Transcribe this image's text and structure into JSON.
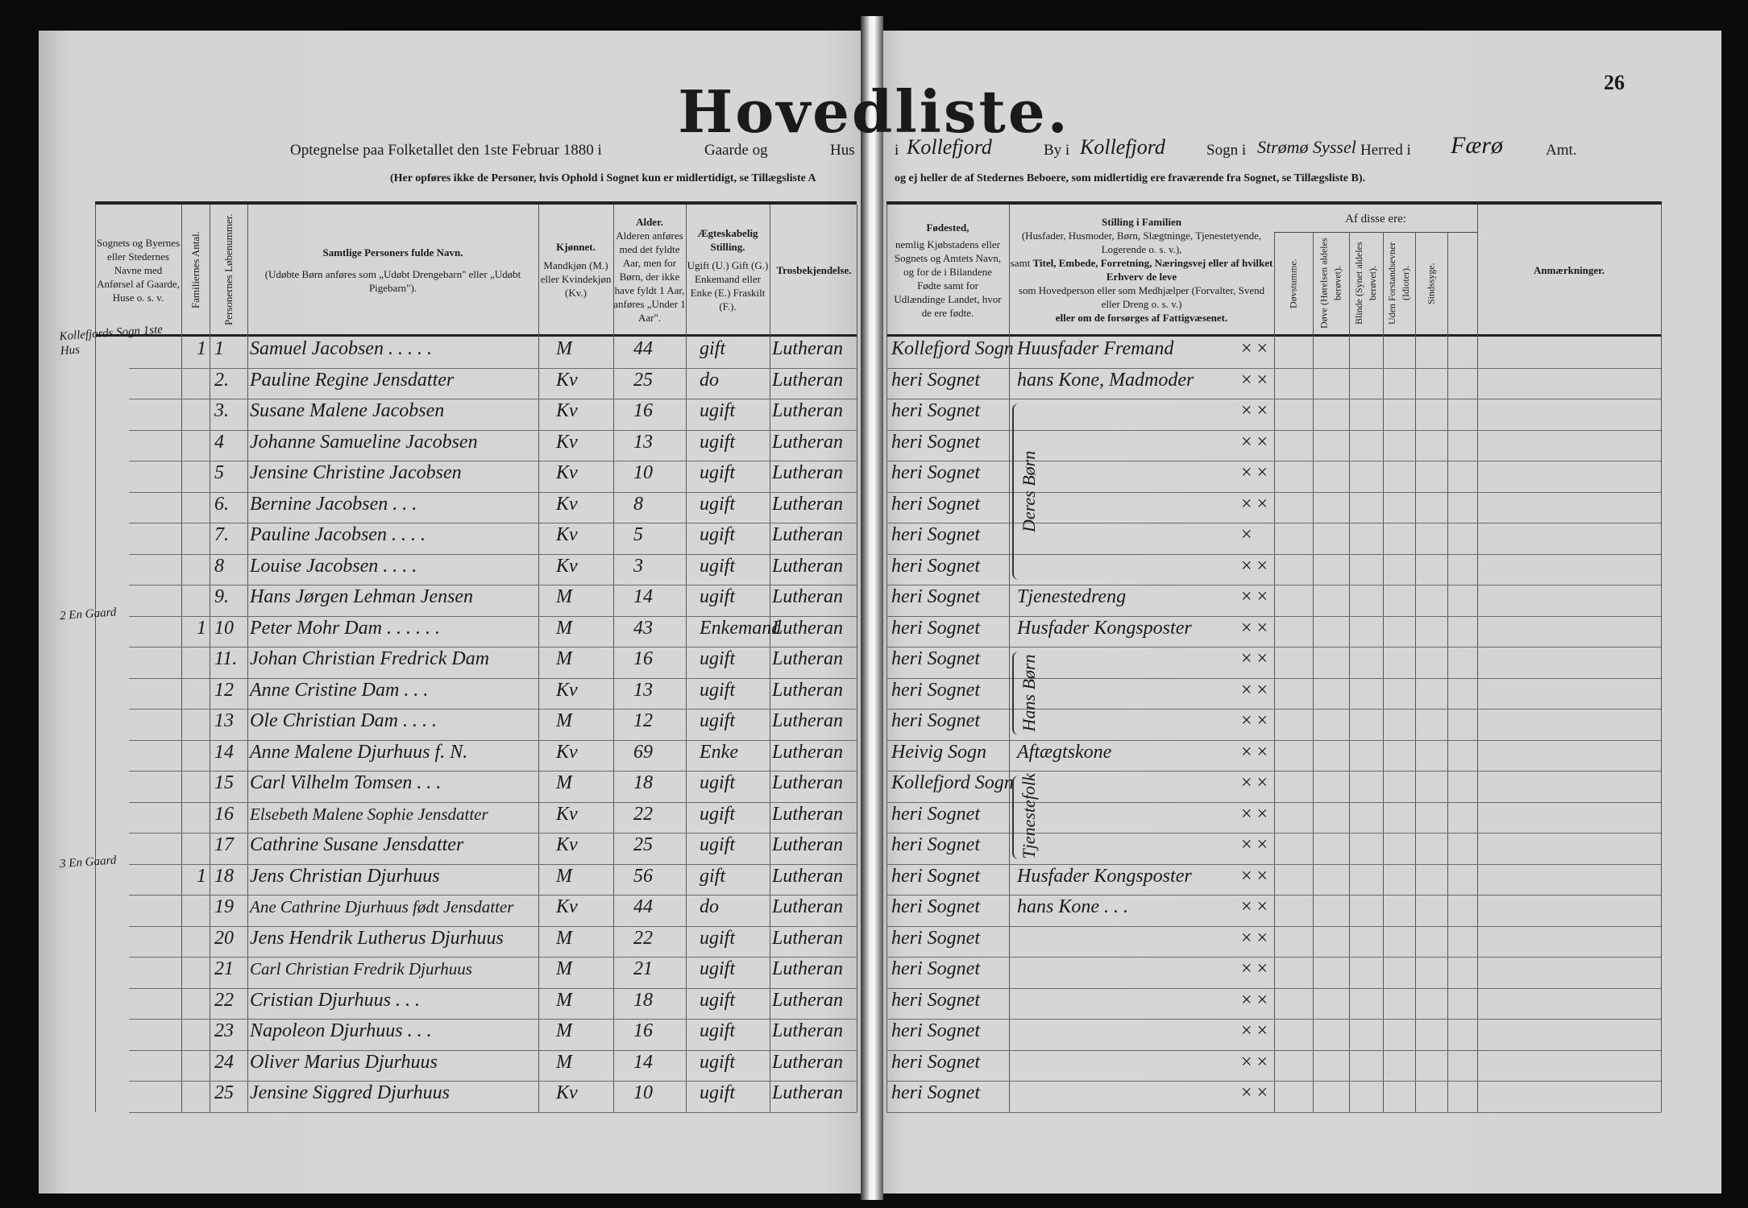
{
  "title": "Hovedliste.",
  "page_number": "26",
  "subtitle": {
    "part1": "Optegnelse paa Folketallet den 1ste Februar 1880 i",
    "gaarde": "Gaarde og",
    "hus": "Hus",
    "i1": "i",
    "place_by": "Kollefjord",
    "by": "By i",
    "place_sogn": "Kollefjord",
    "sogn": "Sogn i",
    "place_herred": "Strømø Syssel",
    "herred": "Herred i",
    "place_amt": "Færø",
    "amt": "Amt."
  },
  "note": {
    "left": "(Her opføres ikke de Personer, hvis Ophold i Sognet kun er midlertidigt, se Tillægsliste A",
    "right": "og ej heller de af Stedernes Beboere, som midlertidig ere fraværende fra Sognet, se Tillægsliste B)."
  },
  "headers": {
    "place": "Sognets og Byernes eller Stedernes Navne med Anførsel af Gaarde, Huse o. s. v.",
    "families": "Familiernes Antal.",
    "person_no": "Personernes Løbenummer.",
    "name_title": "Samtlige Personers fulde Navn.",
    "name_note": "(Udøbte Børn anføres som „Udøbt Drengebarn\" eller „Udøbt Pigebarn\").",
    "sex_title": "Kjønnet.",
    "sex_note": "Mandkjøn (M.) eller Kvindekjøn (Kv.)",
    "age_title": "Alder.",
    "age_note": "Alderen anføres med det fyldte Aar, men for Børn, der ikke have fyldt 1 Aar, anføres „Under 1 Aar\".",
    "marital_title": "Ægteskabelig Stilling.",
    "marital_note": "Ugift (U.) Gift (G.) Enkemand eller Enke (E.) Fraskilt (F.).",
    "religion": "Trosbekjendelse.",
    "birthplace_title": "Fødested,",
    "birthplace_note": "nemlig Kjøbstadens eller Sognets og Amtets Navn, og for de i Bilandene Fødte samt for Udlændinge Landet, hvor de ere fødte.",
    "position_title": "Stilling i Familien",
    "position_note1": "(Husfader, Husmoder, Børn, Slægtninge, Tjenestetyende, Logerende o. s. v.),",
    "position_note2a": "samt",
    "position_note2b": "Titel, Embede, Forretning, Næringsvej eller af hvilket Erhverv de leve",
    "position_note3": "som Hovedperson eller som Medhjælper (Forvalter, Svend eller Dreng o. s. v.)",
    "position_note4": "eller om de forsørges af Fattigvæsenet.",
    "af_disse": "Af disse ere:",
    "deafmute": "Døvstumme.",
    "deaf": "Døve (Hørelsen aldeles berøvet).",
    "blind": "Blinde (Synet aldeles berøvet).",
    "idiot": "Uden Forstandsevner (Idioter).",
    "insane": "Sindssyge.",
    "remarks": "Anmærkninger."
  },
  "rows": [
    {
      "place": "Kollefjords Sogn 1ste Hus",
      "fam": "1",
      "no": "1",
      "name": "Samuel Jacobsen . . . . .",
      "sex": "M",
      "age": "44",
      "marital": "gift",
      "religion": "Lutheran",
      "birthplace": "Kollefjord Sogn",
      "position": "Huusfader Fremand",
      "marks": "× ×"
    },
    {
      "place": "",
      "fam": "",
      "no": "2.",
      "name": "Pauline Regine Jensdatter",
      "sex": "Kv",
      "age": "25",
      "marital": "do",
      "religion": "Lutheran",
      "birthplace": "heri Sognet",
      "position": "hans Kone, Madmoder",
      "marks": "× ×"
    },
    {
      "place": "",
      "fam": "",
      "no": "3.",
      "name": "Susane Malene Jacobsen",
      "sex": "Kv",
      "age": "16",
      "marital": "ugift",
      "religion": "Lutheran",
      "birthplace": "heri Sognet",
      "position": "",
      "marks": "× ×"
    },
    {
      "place": "",
      "fam": "",
      "no": "4",
      "name": "Johanne Samueline Jacobsen",
      "sex": "Kv",
      "age": "13",
      "marital": "ugift",
      "religion": "Lutheran",
      "birthplace": "heri Sognet",
      "position": "",
      "marks": "× ×"
    },
    {
      "place": "",
      "fam": "",
      "no": "5",
      "name": "Jensine Christine Jacobsen",
      "sex": "Kv",
      "age": "10",
      "marital": "ugift",
      "religion": "Lutheran",
      "birthplace": "heri Sognet",
      "position": "",
      "marks": "× ×"
    },
    {
      "place": "",
      "fam": "",
      "no": "6.",
      "name": "Bernine Jacobsen . . .",
      "sex": "Kv",
      "age": "8",
      "marital": "ugift",
      "religion": "Lutheran",
      "birthplace": "heri Sognet",
      "position": "",
      "marks": "× ×"
    },
    {
      "place": "",
      "fam": "",
      "no": "7.",
      "name": "Pauline Jacobsen . . . .",
      "sex": "Kv",
      "age": "5",
      "marital": "ugift",
      "religion": "Lutheran",
      "birthplace": "heri Sognet",
      "position": "",
      "marks": "×"
    },
    {
      "place": "",
      "fam": "",
      "no": "8",
      "name": "Louise Jacobsen . . . .",
      "sex": "Kv",
      "age": "3",
      "marital": "ugift",
      "religion": "Lutheran",
      "birthplace": "heri Sognet",
      "position": "",
      "marks": "× ×"
    },
    {
      "place": "",
      "fam": "",
      "no": "9.",
      "name": "Hans Jørgen Lehman Jensen",
      "sex": "M",
      "age": "14",
      "marital": "ugift",
      "religion": "Lutheran",
      "birthplace": "heri Sognet",
      "position": "Tjenestedreng",
      "marks": "× ×"
    },
    {
      "place": "2 En Gaard",
      "fam": "1",
      "no": "10",
      "name": "Peter Mohr Dam . . . . . .",
      "sex": "M",
      "age": "43",
      "marital": "Enkemand",
      "religion": "Lutheran",
      "birthplace": "heri Sognet",
      "position": "Husfader Kongsposter",
      "marks": "× ×"
    },
    {
      "place": "",
      "fam": "",
      "no": "11.",
      "name": "Johan Christian Fredrick Dam",
      "sex": "M",
      "age": "16",
      "marital": "ugift",
      "religion": "Lutheran",
      "birthplace": "heri Sognet",
      "position": "",
      "marks": "× ×"
    },
    {
      "place": "",
      "fam": "",
      "no": "12",
      "name": "Anne Cristine Dam . . .",
      "sex": "Kv",
      "age": "13",
      "marital": "ugift",
      "religion": "Lutheran",
      "birthplace": "heri Sognet",
      "position": "",
      "marks": "× ×"
    },
    {
      "place": "",
      "fam": "",
      "no": "13",
      "name": "Ole Christian Dam . . . .",
      "sex": "M",
      "age": "12",
      "marital": "ugift",
      "religion": "Lutheran",
      "birthplace": "heri Sognet",
      "position": "",
      "marks": "× ×"
    },
    {
      "place": "",
      "fam": "",
      "no": "14",
      "name": "Anne Malene Djurhuus f. N.",
      "sex": "Kv",
      "age": "69",
      "marital": "Enke",
      "religion": "Lutheran",
      "birthplace": "Heivig Sogn",
      "position": "Aftægtskone",
      "marks": "× ×"
    },
    {
      "place": "",
      "fam": "",
      "no": "15",
      "name": "Carl Vilhelm Tomsen . . .",
      "sex": "M",
      "age": "18",
      "marital": "ugift",
      "religion": "Lutheran",
      "birthplace": "Kollefjord Sogn",
      "position": "",
      "marks": "× ×"
    },
    {
      "place": "",
      "fam": "",
      "no": "16",
      "name": "Elsebeth Malene Sophie Jensdatter",
      "sex": "Kv",
      "age": "22",
      "marital": "ugift",
      "religion": "Lutheran",
      "birthplace": "heri Sognet",
      "position": "",
      "marks": "× ×"
    },
    {
      "place": "",
      "fam": "",
      "no": "17",
      "name": "Cathrine Susane Jensdatter",
      "sex": "Kv",
      "age": "25",
      "marital": "ugift",
      "religion": "Lutheran",
      "birthplace": "heri Sognet",
      "position": "",
      "marks": "× ×"
    },
    {
      "place": "3 En Gaard",
      "fam": "1",
      "no": "18",
      "name": "Jens Christian Djurhuus",
      "sex": "M",
      "age": "56",
      "marital": "gift",
      "religion": "Lutheran",
      "birthplace": "heri Sognet",
      "position": "Husfader Kongsposter",
      "marks": "× ×"
    },
    {
      "place": "",
      "fam": "",
      "no": "19",
      "name": "Ane Cathrine Djurhuus født Jensdatter",
      "sex": "Kv",
      "age": "44",
      "marital": "do",
      "religion": "Lutheran",
      "birthplace": "heri Sognet",
      "position": "hans Kone . . .",
      "marks": "× ×"
    },
    {
      "place": "",
      "fam": "",
      "no": "20",
      "name": "Jens Hendrik Lutherus Djurhuus",
      "sex": "M",
      "age": "22",
      "marital": "ugift",
      "religion": "Lutheran",
      "birthplace": "heri Sognet",
      "position": "",
      "marks": "× ×"
    },
    {
      "place": "",
      "fam": "",
      "no": "21",
      "name": "Carl Christian Fredrik Djurhuus",
      "sex": "M",
      "age": "21",
      "marital": "ugift",
      "religion": "Lutheran",
      "birthplace": "heri Sognet",
      "position": "",
      "marks": "× ×"
    },
    {
      "place": "",
      "fam": "",
      "no": "22",
      "name": "Cristian Djurhuus . . .",
      "sex": "M",
      "age": "18",
      "marital": "ugift",
      "religion": "Lutheran",
      "birthplace": "heri Sognet",
      "position": "",
      "marks": "× ×"
    },
    {
      "place": "",
      "fam": "",
      "no": "23",
      "name": "Napoleon Djurhuus . . .",
      "sex": "M",
      "age": "16",
      "marital": "ugift",
      "religion": "Lutheran",
      "birthplace": "heri Sognet",
      "position": "",
      "marks": "× ×"
    },
    {
      "place": "",
      "fam": "",
      "no": "24",
      "name": "Oliver Marius Djurhuus",
      "sex": "M",
      "age": "14",
      "marital": "ugift",
      "religion": "Lutheran",
      "birthplace": "heri Sognet",
      "position": "",
      "marks": "× ×"
    },
    {
      "place": "",
      "fam": "",
      "no": "25",
      "name": "Jensine Siggred Djurhuus",
      "sex": "Kv",
      "age": "10",
      "marital": "ugift",
      "religion": "Lutheran",
      "birthplace": "heri Sognet",
      "position": "",
      "marks": "× ×"
    }
  ],
  "groups": [
    {
      "label": "Deres Børn",
      "from": 3,
      "to": 8
    },
    {
      "label": "Hans Børn",
      "from": 11,
      "to": 13
    },
    {
      "label": "Tjenestefolk",
      "from": 15,
      "to": 17
    }
  ]
}
